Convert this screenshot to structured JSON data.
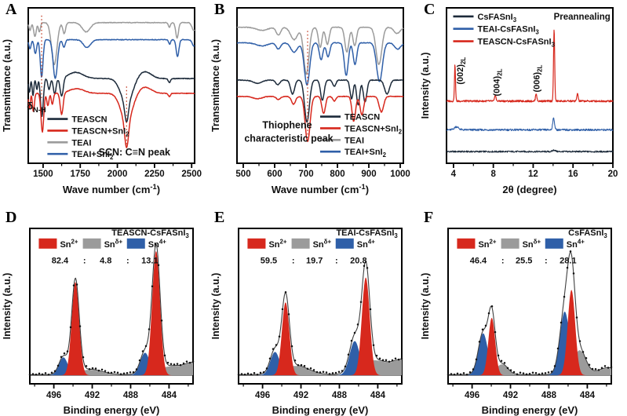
{
  "colors": {
    "navy": "#1c2a3a",
    "red": "#d7281d",
    "gray": "#9b9b9b",
    "blue": "#2f5fa8",
    "annotation": "#c23b22",
    "envelope": "#3f3f3f",
    "marker": "#111111",
    "axis": "#000000"
  },
  "chart_data": [
    {
      "panel_label": "A",
      "type": "spectra",
      "kind": "ftir",
      "xlabel": "Wave number (cm^{-1})",
      "ylabel": "Transmittance (a.u.)",
      "x_range": [
        1400,
        2520
      ],
      "x_ticks": [
        1500,
        1750,
        2000,
        2250,
        2500
      ],
      "x_minor_ticks": [
        1625,
        1875,
        2125,
        2375
      ],
      "legend": {
        "preset": "bottom-left",
        "items": [
          {
            "label": "TEASCN",
            "color": "navy"
          },
          {
            "label": "TEASCN+SnI_{2}",
            "color": "red"
          },
          {
            "label": "TEAI",
            "color": "gray"
          },
          {
            "label": "TEAI+SnI_{2}",
            "color": "blue"
          }
        ]
      },
      "annotations": [
        {
          "name": "nh-bend-guide-line",
          "type": "vline",
          "x": 1490,
          "fy1": 0.42,
          "fy2": 0.96
        },
        {
          "name": "scn-peak-guide-line",
          "type": "vline",
          "x": 2062,
          "fy1": 0.1,
          "fy2": 0.5
        },
        {
          "name": "nh-bend-label",
          "type": "text",
          "text": "δ_{N-H}",
          "x": 1455,
          "fy": 0.345,
          "size": 13
        },
        {
          "name": "scn-peak-label",
          "type": "text",
          "text": "SCN: C≡N peak",
          "x": 2115,
          "fy": 0.05,
          "size": 12.5
        }
      ],
      "series": [
        {
          "name": "TEAI",
          "color": "gray",
          "baseline": 0.905,
          "noise": 0.002,
          "peaks": [
            [
              1412,
              10,
              -0.05
            ],
            [
              1445,
              12,
              -0.09
            ],
            [
              1475,
              10,
              -0.06
            ],
            [
              1575,
              26,
              -0.27
            ],
            [
              1642,
              13,
              -0.07
            ],
            [
              1790,
              38,
              -0.06
            ],
            [
              2350,
              10,
              -0.03
            ],
            [
              2402,
              13,
              -0.1
            ],
            [
              2515,
              18,
              -0.05
            ]
          ]
        },
        {
          "name": "TEAI+SnI2",
          "color": "blue",
          "baseline": 0.795,
          "noise": 0.002,
          "peaks": [
            [
              1412,
              10,
              -0.06
            ],
            [
              1448,
              12,
              -0.09
            ],
            [
              1490,
              13,
              -0.24
            ],
            [
              1582,
              20,
              -0.25
            ],
            [
              1640,
              12,
              -0.05
            ],
            [
              1795,
              34,
              -0.05
            ],
            [
              2352,
              9,
              -0.03
            ],
            [
              2405,
              13,
              -0.11
            ],
            [
              2515,
              16,
              -0.04
            ]
          ]
        },
        {
          "name": "TEASCN",
          "color": "navy",
          "baseline": 0.545,
          "noise": 0.002,
          "peaks": [
            [
              1408,
              8,
              -0.09
            ],
            [
              1432,
              8,
              -0.11
            ],
            [
              1458,
              8,
              -0.07
            ],
            [
              1492,
              13,
              -0.245
            ],
            [
              1540,
              11,
              -0.07
            ],
            [
              1578,
              13,
              -0.1
            ],
            [
              1625,
              15,
              -0.12
            ],
            [
              1720,
              70,
              0.04
            ],
            [
              2062,
              55,
              -0.16
            ],
            [
              2062,
              17,
              -0.12
            ],
            [
              2185,
              60,
              0.045
            ],
            [
              2350,
              11,
              -0.025
            ]
          ]
        },
        {
          "name": "TEASCN+SnI2",
          "color": "red",
          "baseline": 0.45,
          "noise": 0.002,
          "peaks": [
            [
              1408,
              8,
              -0.1
            ],
            [
              1435,
              9,
              -0.12
            ],
            [
              1495,
              13,
              -0.25
            ],
            [
              1532,
              10,
              -0.08
            ],
            [
              1562,
              10,
              -0.07
            ],
            [
              1625,
              14,
              -0.14
            ],
            [
              1725,
              70,
              0.03
            ],
            [
              2062,
              55,
              -0.18
            ],
            [
              2062,
              18,
              -0.17
            ],
            [
              2185,
              60,
              0.04
            ],
            [
              2350,
              11,
              -0.02
            ]
          ]
        }
      ]
    },
    {
      "panel_label": "B",
      "type": "spectra",
      "kind": "ftir",
      "xlabel": "Wave number (cm^{-1})",
      "ylabel": "Transmittance (a.u.)",
      "x_range": [
        480,
        1010
      ],
      "x_ticks": [
        500,
        600,
        700,
        800,
        900,
        1000
      ],
      "x_minor_ticks": [
        550,
        650,
        750,
        850,
        950
      ],
      "legend": {
        "preset": "bottom-right",
        "items": [
          {
            "label": "TEASCN",
            "color": "navy"
          },
          {
            "label": "TEASCN+SnI_{2}",
            "color": "red"
          },
          {
            "label": "TEAI",
            "color": "gray"
          },
          {
            "label": "TEAI+SnI_{2}",
            "color": "blue"
          }
        ]
      },
      "annotations": [
        {
          "name": "thiophene-guide-line",
          "type": "vline",
          "x": 705,
          "fy1": 0.185,
          "fy2": 0.86
        },
        {
          "name": "thiophene-label-line1",
          "type": "text",
          "text": "Thiophene",
          "x": 640,
          "fy": 0.225,
          "size": 12.5
        },
        {
          "name": "thiophene-label-line2",
          "type": "text",
          "text": "characteristic peak",
          "x": 645,
          "fy": 0.14,
          "size": 12.5
        }
      ],
      "series": [
        {
          "name": "TEAI",
          "color": "gray",
          "baseline": 0.875,
          "noise": 0.002,
          "peaks": [
            [
              560,
              25,
              -0.02
            ],
            [
              612,
              10,
              -0.05
            ],
            [
              662,
              16,
              -0.08
            ],
            [
              701,
              12,
              -0.3
            ],
            [
              745,
              8,
              -0.13
            ],
            [
              768,
              8,
              -0.11
            ],
            [
              830,
              9,
              -0.16
            ],
            [
              855,
              8,
              -0.12
            ],
            [
              932,
              13,
              -0.24
            ],
            [
              990,
              14,
              -0.04
            ]
          ]
        },
        {
          "name": "TEAI+SnI2",
          "color": "blue",
          "baseline": 0.775,
          "noise": 0.002,
          "peaks": [
            [
              560,
              25,
              -0.02
            ],
            [
              612,
              10,
              -0.04
            ],
            [
              662,
              15,
              -0.06
            ],
            [
              703,
              12,
              -0.27
            ],
            [
              748,
              8,
              -0.11
            ],
            [
              770,
              8,
              -0.09
            ],
            [
              828,
              9,
              -0.21
            ],
            [
              856,
              8,
              -0.14
            ],
            [
              934,
              13,
              -0.25
            ],
            [
              992,
              14,
              -0.04
            ]
          ]
        },
        {
          "name": "TEASCN",
          "color": "navy",
          "baseline": 0.535,
          "noise": 0.002,
          "peaks": [
            [
              545,
              20,
              -0.02
            ],
            [
              610,
              9,
              -0.03
            ],
            [
              657,
              9,
              -0.09
            ],
            [
              703,
              11,
              -0.27
            ],
            [
              752,
              8,
              -0.13
            ],
            [
              790,
              7,
              -0.04
            ],
            [
              845,
              7,
              -0.12
            ],
            [
              866,
              7,
              -0.16
            ],
            [
              888,
              8,
              -0.14
            ],
            [
              958,
              11,
              -0.09
            ]
          ]
        },
        {
          "name": "TEASCN+SnI2",
          "color": "red",
          "baseline": 0.43,
          "noise": 0.002,
          "peaks": [
            [
              545,
              20,
              -0.015
            ],
            [
              612,
              9,
              -0.02
            ],
            [
              660,
              9,
              -0.05
            ],
            [
              705,
              11,
              -0.29
            ],
            [
              756,
              8,
              -0.11
            ],
            [
              790,
              7,
              -0.03
            ],
            [
              852,
              8,
              -0.16
            ],
            [
              878,
              8,
              -0.12
            ],
            [
              940,
              10,
              -0.1
            ]
          ]
        }
      ]
    },
    {
      "panel_label": "C",
      "type": "spectra",
      "kind": "xrd",
      "xlabel": "2θ (degree)",
      "ylabel": "Intensity (a.u.)",
      "x_range": [
        3.3,
        20
      ],
      "x_ticks": [
        4,
        8,
        12,
        16,
        20
      ],
      "x_minor_ticks": [
        6,
        10,
        14,
        18
      ],
      "legend": {
        "preset": "top-left",
        "items": [
          {
            "label": "CsFASnI_{3}",
            "color": "navy"
          },
          {
            "label": "TEAI-CsFASnI_{3}",
            "color": "blue"
          },
          {
            "label": "TEASCN-CsFASnI_{3}",
            "color": "red"
          }
        ]
      },
      "annotations": [
        {
          "name": "peak-002-label",
          "type": "vtext",
          "text": "(002)_{2L}",
          "x": 4.95,
          "fy": 0.595,
          "color": "red",
          "size": 11
        },
        {
          "name": "peak-004-label",
          "type": "vtext",
          "text": "(004)_{2L}",
          "x": 8.6,
          "fy": 0.52,
          "color": "red",
          "size": 11
        },
        {
          "name": "peak-006-label",
          "type": "vtext",
          "text": "(006)_{2L}",
          "x": 12.65,
          "fy": 0.545,
          "color": "red",
          "size": 11
        },
        {
          "name": "preannealing-label",
          "type": "text",
          "text": "Preannealing",
          "fx": 0.985,
          "fy": 0.925,
          "anchor": "end",
          "size": 11.5
        }
      ],
      "series": [
        {
          "name": "CsFASnI3",
          "color": "navy",
          "baseline": 0.075,
          "noise": 0.005,
          "lw": 1.1,
          "peaks": [
            [
              14.1,
              0.2,
              0.01
            ]
          ]
        },
        {
          "name": "TEAI-CsFASnI3",
          "color": "blue",
          "baseline": 0.215,
          "noise": 0.006,
          "lw": 1.1,
          "peaks": [
            [
              4.3,
              0.3,
              0.02
            ],
            [
              14.05,
              0.13,
              0.075
            ]
          ]
        },
        {
          "name": "TEASCN-CsFASnI3",
          "color": "red",
          "baseline": 0.4,
          "noise": 0.006,
          "lw": 1.2,
          "peaks": [
            [
              4.15,
              0.075,
              0.235
            ],
            [
              8.2,
              0.09,
              0.04
            ],
            [
              12.3,
              0.09,
              0.05
            ],
            [
              14.1,
              0.085,
              0.46
            ],
            [
              16.45,
              0.09,
              0.05
            ]
          ]
        }
      ]
    },
    {
      "panel_label": "D",
      "type": "xps",
      "title": "TEASCN-CsFASnI_{3}",
      "xlabel": "Binding energy (eV)",
      "ylabel": "Intensity (a.u.)",
      "x_range": [
        498.5,
        481.5
      ],
      "x_ticks": [
        496,
        492,
        488,
        484
      ],
      "x_minor_ticks": [
        498,
        494,
        490,
        486,
        482
      ],
      "legend": {
        "preset": "xps-row",
        "items": [
          {
            "label": "Sn^{2+}",
            "color": "red"
          },
          {
            "label": "Sn^{δ+}",
            "color": "gray"
          },
          {
            "label": "Sn^{4+}",
            "color": "blue"
          }
        ]
      },
      "ratio": [
        "82.4",
        ":",
        "4.8",
        ":",
        "13.1"
      ],
      "components": [
        {
          "name": "Sn-delta",
          "color": "gray",
          "peaks": [
            [
              492.3,
              1.8,
              0.035
            ],
            [
              483.9,
              1.9,
              0.055
            ],
            [
              481.3,
              1.4,
              0.07
            ]
          ]
        },
        {
          "name": "Sn4+",
          "color": "blue",
          "peaks": [
            [
              495.0,
              0.65,
              0.115
            ],
            [
              486.5,
              0.7,
              0.145
            ]
          ]
        },
        {
          "name": "Sn2+",
          "color": "red",
          "peaks": [
            [
              493.75,
              0.55,
              0.6
            ],
            [
              485.35,
              0.58,
              0.8
            ]
          ]
        }
      ]
    },
    {
      "panel_label": "E",
      "type": "xps",
      "title": "TEAI-CsFASnI_{3}",
      "xlabel": "Binding energy (eV)",
      "ylabel": "Intensity (a.u.)",
      "x_range": [
        498.5,
        481.5
      ],
      "x_ticks": [
        496,
        492,
        488,
        484
      ],
      "x_minor_ticks": [
        498,
        494,
        490,
        486,
        482
      ],
      "legend": {
        "preset": "xps-row",
        "items": [
          {
            "label": "Sn^{2+}",
            "color": "red"
          },
          {
            "label": "Sn^{δ+}",
            "color": "gray"
          },
          {
            "label": "Sn^{4+}",
            "color": "blue"
          }
        ]
      },
      "ratio": [
        "59.5",
        ":",
        "19.7",
        ":",
        "20.8"
      ],
      "components": [
        {
          "name": "Sn-delta",
          "color": "gray",
          "peaks": [
            [
              492.6,
              1.9,
              0.06
            ],
            [
              484.4,
              2.0,
              0.095
            ],
            [
              481.3,
              1.5,
              0.09
            ]
          ]
        },
        {
          "name": "Sn4+",
          "color": "blue",
          "peaks": [
            [
              494.7,
              0.7,
              0.15
            ],
            [
              486.4,
              0.75,
              0.22
            ]
          ]
        },
        {
          "name": "Sn2+",
          "color": "red",
          "peaks": [
            [
              493.6,
              0.55,
              0.47
            ],
            [
              485.25,
              0.58,
              0.63
            ]
          ]
        }
      ]
    },
    {
      "panel_label": "F",
      "type": "xps",
      "title": "CsFASnI_{3}",
      "xlabel": "Binding energy (eV)",
      "ylabel": "Intensity (a.u.)",
      "x_range": [
        498.5,
        481.5
      ],
      "x_ticks": [
        496,
        492,
        488,
        484
      ],
      "x_minor_ticks": [
        498,
        494,
        490,
        486,
        482
      ],
      "legend": {
        "preset": "xps-row",
        "items": [
          {
            "label": "Sn^{2+}",
            "color": "red"
          },
          {
            "label": "Sn^{δ+}",
            "color": "gray"
          },
          {
            "label": "Sn^{4+}",
            "color": "blue"
          }
        ]
      },
      "ratio": [
        "46.4",
        ":",
        "25.5",
        ":",
        "28.1"
      ],
      "components": [
        {
          "name": "Sn-delta",
          "color": "gray",
          "peaks": [
            [
              492.9,
              0.85,
              0.07
            ],
            [
              484.8,
              0.9,
              0.16
            ],
            [
              481.8,
              1.5,
              0.045
            ]
          ]
        },
        {
          "name": "Sn4+",
          "color": "blue",
          "peaks": [
            [
              494.85,
              0.7,
              0.27
            ],
            [
              486.35,
              0.72,
              0.41
            ]
          ]
        },
        {
          "name": "Sn2+",
          "color": "red",
          "peaks": [
            [
              493.95,
              0.5,
              0.37
            ],
            [
              485.65,
              0.55,
              0.55
            ]
          ]
        }
      ]
    }
  ]
}
